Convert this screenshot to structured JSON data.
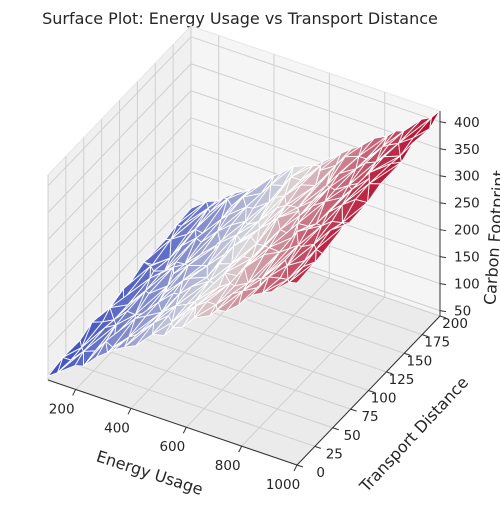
{
  "chart_data": {
    "type": "surface",
    "title": "Surface Plot: Energy Usage vs Transport Distance",
    "xlabel": "Energy Usage",
    "ylabel": "Transport Distance",
    "zlabel": "Carbon Footprint",
    "xticks": [
      "200",
      "400",
      "600",
      "800",
      "1000"
    ],
    "yticks": [
      "0",
      "25",
      "50",
      "75",
      "100",
      "125",
      "150",
      "175",
      "200"
    ],
    "zticks": [
      "50",
      "100",
      "150",
      "200",
      "250",
      "300",
      "350",
      "400"
    ],
    "xlim": [
      100,
      1000
    ],
    "ylim": [
      0,
      200
    ],
    "zlim": [
      40,
      420
    ],
    "colormap": "coolwarm",
    "cmap_low": "#3b4cc0",
    "cmap_mid": "#dddddd",
    "cmap_high": "#b40426",
    "grid": true,
    "surface_function": {
      "description_shown": false,
      "z_at_x100_y0": 45,
      "z_at_x1000_y0": 380,
      "z_at_x100_y200": 80,
      "z_at_x1000_y200": 415
    }
  }
}
